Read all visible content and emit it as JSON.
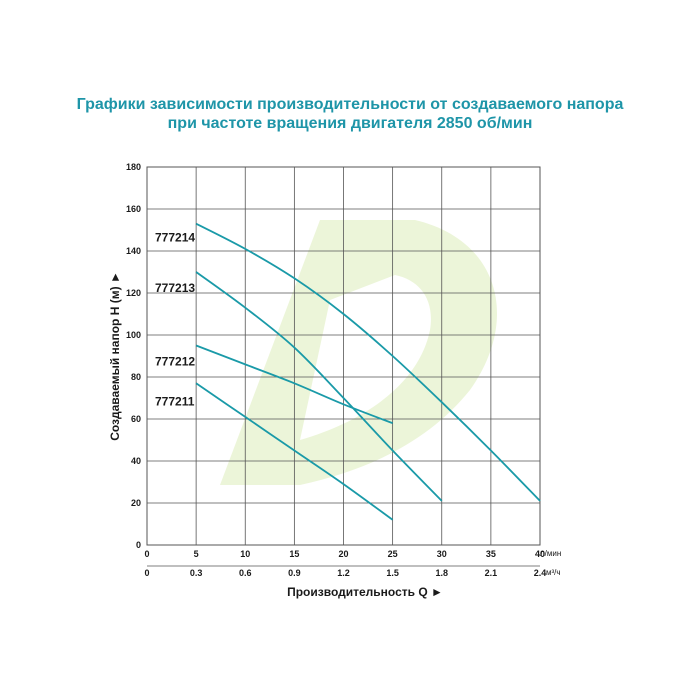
{
  "title_line1": "Графики зависимости производительности от создаваемого напора",
  "title_line2": "при частоте вращения двигателя 2850 об/мин",
  "colors": {
    "title": "#1e95a8",
    "curve": "#1a9aa8",
    "grid": "#555555",
    "watermark": "#e9f3d2"
  },
  "chart_data": {
    "type": "line",
    "title": "Графики зависимости производительности от создаваемого напора при частоте вращения двигателя 2850 об/мин",
    "xlabel": "Производительность Q ►",
    "ylabel": "Создаваемый напор H (м) ►",
    "x_unit_primary": "л/мин",
    "x_unit_secondary": "м³/ч",
    "xlim": [
      0,
      40
    ],
    "ylim": [
      0,
      180
    ],
    "x_ticks": [
      "0",
      "5",
      "10",
      "15",
      "20",
      "25",
      "30",
      "35",
      "40"
    ],
    "x_ticks_secondary": [
      "0",
      "0.3",
      "0.6",
      "0.9",
      "1.2",
      "1.5",
      "1.8",
      "2.1",
      "2.4"
    ],
    "y_ticks": [
      "0",
      "20",
      "40",
      "60",
      "80",
      "100",
      "120",
      "140",
      "160",
      "180"
    ],
    "grid": true,
    "series": [
      {
        "name": "777214",
        "x": [
          5,
          10,
          15,
          20,
          25,
          30,
          35,
          40
        ],
        "y": [
          153,
          141,
          127,
          110,
          90,
          68,
          45,
          21
        ]
      },
      {
        "name": "777213",
        "x": [
          5,
          10,
          15,
          20,
          25,
          30
        ],
        "y": [
          130,
          113,
          94,
          70,
          45,
          21
        ]
      },
      {
        "name": "777212",
        "x": [
          5,
          10,
          15,
          20,
          25
        ],
        "y": [
          95,
          86,
          77,
          67,
          58
        ]
      },
      {
        "name": "777211",
        "x": [
          5,
          10,
          15,
          20,
          25
        ],
        "y": [
          77,
          61,
          45,
          29,
          12
        ]
      }
    ]
  }
}
